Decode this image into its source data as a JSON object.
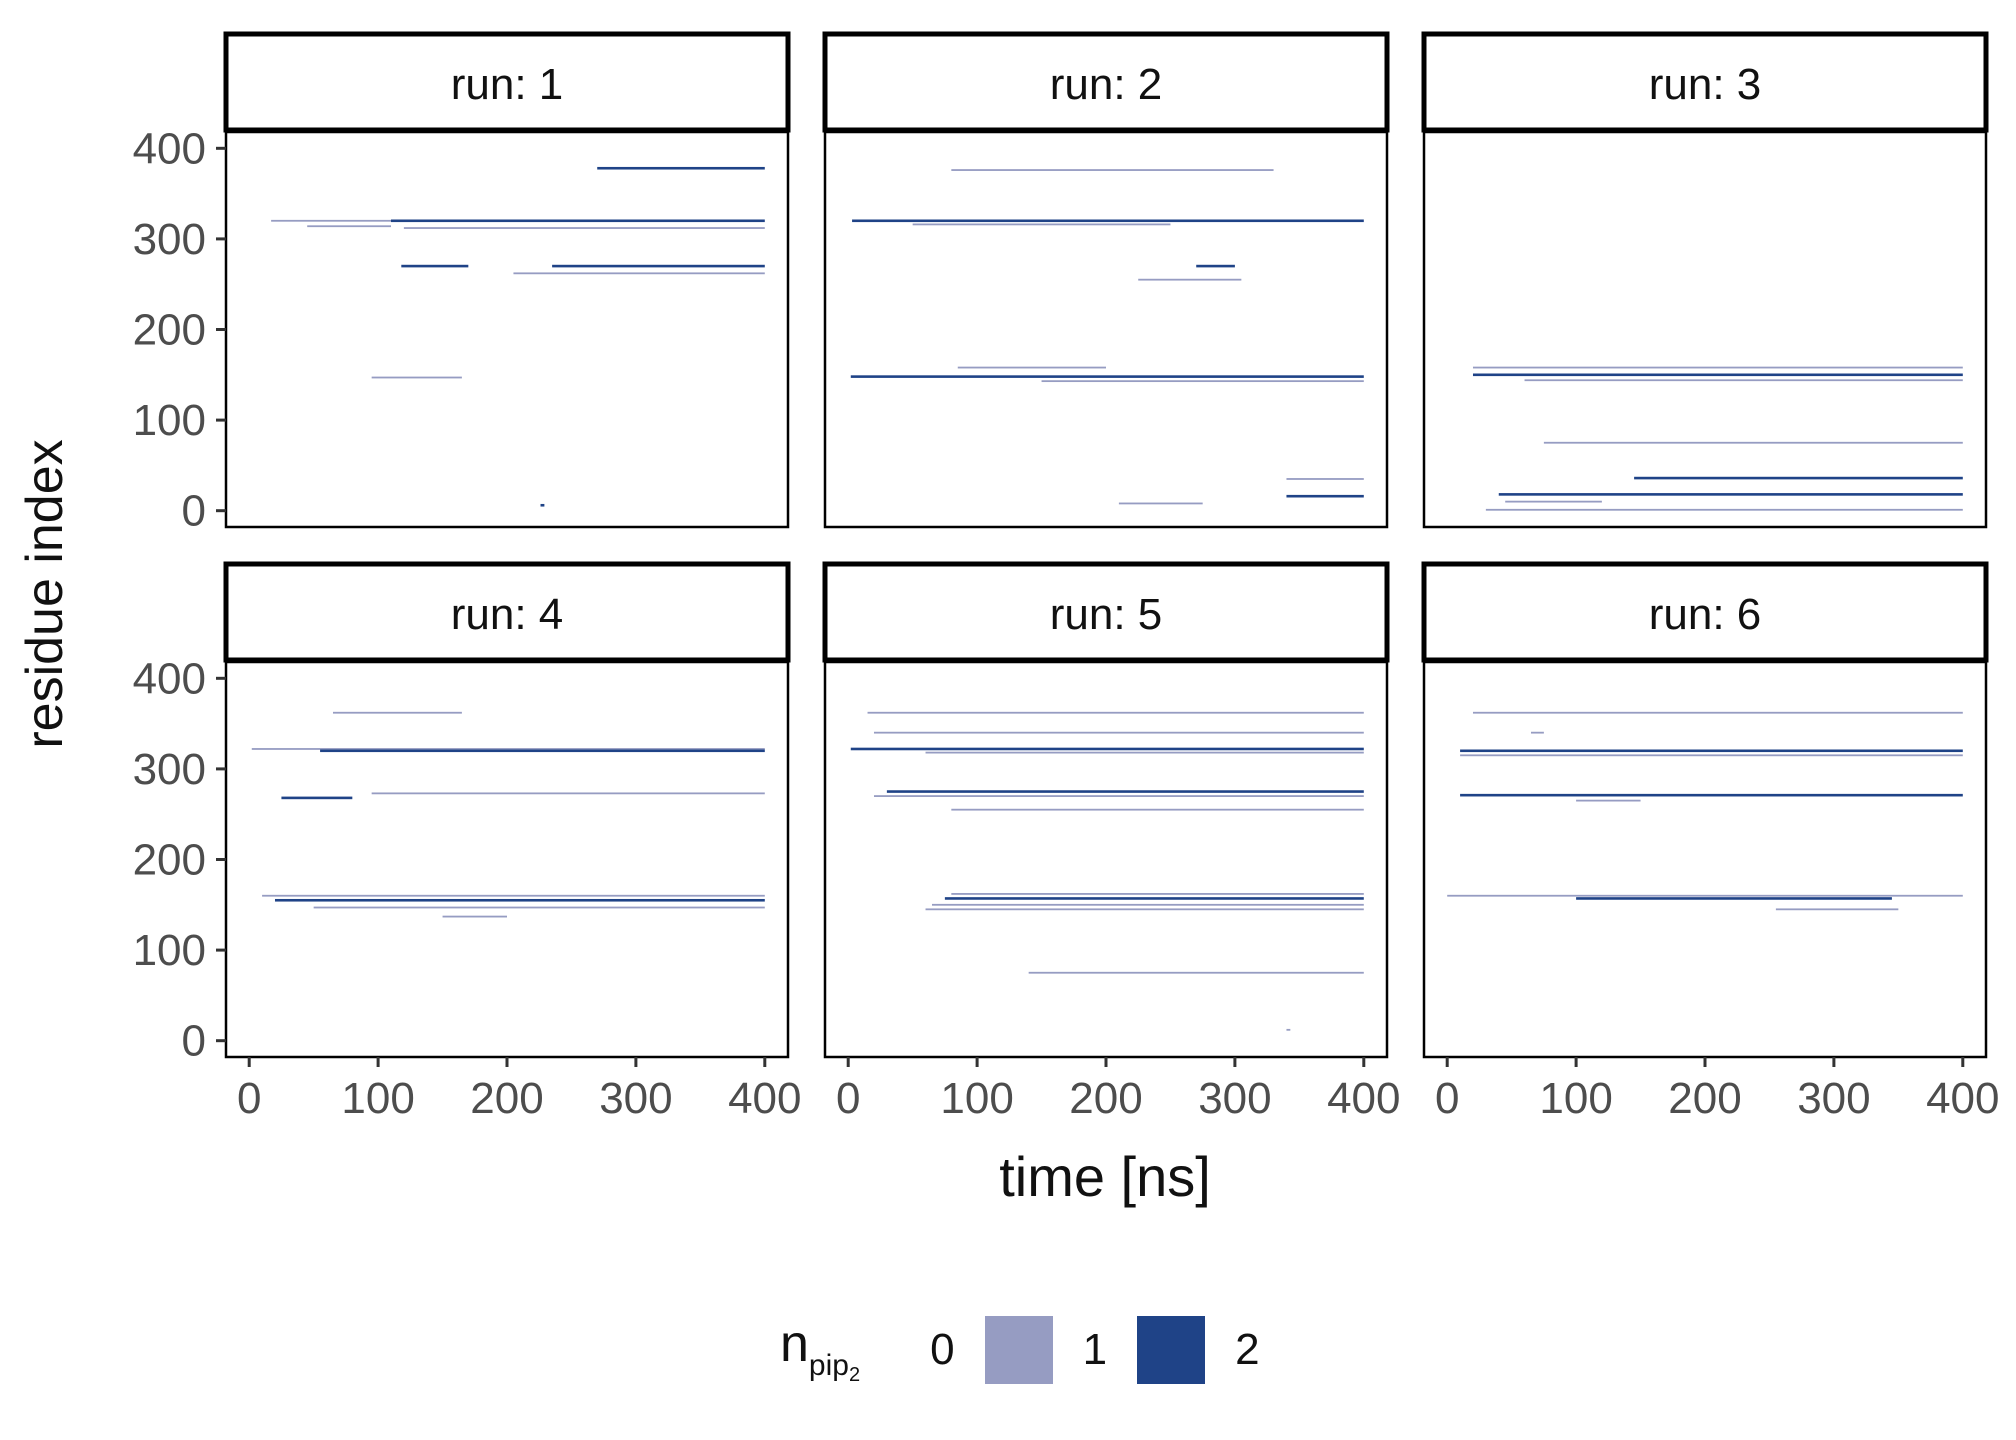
{
  "chart_data": {
    "type": "heatmap",
    "layout": "facet grid 2 rows x 3 columns",
    "xlabel": "time [ns]",
    "ylabel": "residue index",
    "xlim": [
      -18,
      418
    ],
    "ylim": [
      -18,
      418
    ],
    "x_ticks": [
      0,
      100,
      200,
      300,
      400
    ],
    "y_ticks": [
      0,
      100,
      200,
      300,
      400
    ],
    "grid": false,
    "legend": {
      "title_main": "n",
      "title_sub": "pip",
      "title_subsub": "2",
      "placement": "bottom",
      "categories": [
        {
          "label": "0",
          "color": null
        },
        {
          "label": "1",
          "color": "#969cc2"
        },
        {
          "label": "2",
          "color": "#1f4387"
        }
      ]
    },
    "colors": {
      "n1": "#969cc2",
      "n2": "#1f4387"
    },
    "panels": [
      {
        "strip": "run: 1",
        "contacts": [
          {
            "residue": 320,
            "x": [
              17,
              110
            ],
            "n": 1
          },
          {
            "residue": 320,
            "x": [
              110,
              400
            ],
            "n": 2
          },
          {
            "residue": 314,
            "x": [
              45,
              110
            ],
            "n": 1
          },
          {
            "residue": 312,
            "x": [
              120,
              400
            ],
            "n": 1
          },
          {
            "residue": 378,
            "x": [
              270,
              400
            ],
            "n": 2
          },
          {
            "residue": 270,
            "x": [
              118,
              170
            ],
            "n": 2
          },
          {
            "residue": 270,
            "x": [
              235,
              400
            ],
            "n": 2
          },
          {
            "residue": 262,
            "x": [
              205,
              400
            ],
            "n": 1
          },
          {
            "residue": 147,
            "x": [
              95,
              165
            ],
            "n": 1
          },
          {
            "residue": 6,
            "x": [
              226,
              229
            ],
            "n": 2
          }
        ]
      },
      {
        "strip": "run: 2",
        "contacts": [
          {
            "residue": 320,
            "x": [
              3,
              400
            ],
            "n": 2
          },
          {
            "residue": 316,
            "x": [
              50,
              250
            ],
            "n": 1
          },
          {
            "residue": 376,
            "x": [
              80,
              330
            ],
            "n": 1
          },
          {
            "residue": 270,
            "x": [
              270,
              300
            ],
            "n": 2
          },
          {
            "residue": 255,
            "x": [
              225,
              305
            ],
            "n": 1
          },
          {
            "residue": 158,
            "x": [
              85,
              200
            ],
            "n": 1
          },
          {
            "residue": 148,
            "x": [
              2,
              400
            ],
            "n": 2
          },
          {
            "residue": 143,
            "x": [
              150,
              400
            ],
            "n": 1
          },
          {
            "residue": 35,
            "x": [
              340,
              400
            ],
            "n": 1
          },
          {
            "residue": 16,
            "x": [
              340,
              400
            ],
            "n": 2
          },
          {
            "residue": 8,
            "x": [
              210,
              275
            ],
            "n": 1
          }
        ]
      },
      {
        "strip": "run: 3",
        "contacts": [
          {
            "residue": 158,
            "x": [
              20,
              400
            ],
            "n": 1
          },
          {
            "residue": 150,
            "x": [
              20,
              400
            ],
            "n": 2
          },
          {
            "residue": 144,
            "x": [
              60,
              400
            ],
            "n": 1
          },
          {
            "residue": 75,
            "x": [
              75,
              400
            ],
            "n": 1
          },
          {
            "residue": 36,
            "x": [
              145,
              400
            ],
            "n": 2
          },
          {
            "residue": 18,
            "x": [
              40,
              400
            ],
            "n": 2
          },
          {
            "residue": 10,
            "x": [
              45,
              120
            ],
            "n": 1
          },
          {
            "residue": 1,
            "x": [
              30,
              400
            ],
            "n": 1
          }
        ]
      },
      {
        "strip": "run: 4",
        "contacts": [
          {
            "residue": 362,
            "x": [
              65,
              165
            ],
            "n": 1
          },
          {
            "residue": 322,
            "x": [
              2,
              400
            ],
            "n": 1
          },
          {
            "residue": 320,
            "x": [
              55,
              400
            ],
            "n": 2
          },
          {
            "residue": 273,
            "x": [
              95,
              400
            ],
            "n": 1
          },
          {
            "residue": 268,
            "x": [
              25,
              80
            ],
            "n": 2
          },
          {
            "residue": 160,
            "x": [
              10,
              400
            ],
            "n": 1
          },
          {
            "residue": 155,
            "x": [
              20,
              400
            ],
            "n": 2
          },
          {
            "residue": 147,
            "x": [
              50,
              400
            ],
            "n": 1
          },
          {
            "residue": 137,
            "x": [
              150,
              200
            ],
            "n": 1
          }
        ]
      },
      {
        "strip": "run: 5",
        "contacts": [
          {
            "residue": 362,
            "x": [
              15,
              400
            ],
            "n": 1
          },
          {
            "residue": 340,
            "x": [
              20,
              400
            ],
            "n": 1
          },
          {
            "residue": 322,
            "x": [
              2,
              400
            ],
            "n": 2
          },
          {
            "residue": 318,
            "x": [
              60,
              400
            ],
            "n": 1
          },
          {
            "residue": 275,
            "x": [
              30,
              400
            ],
            "n": 2
          },
          {
            "residue": 270,
            "x": [
              20,
              400
            ],
            "n": 1
          },
          {
            "residue": 255,
            "x": [
              80,
              400
            ],
            "n": 1
          },
          {
            "residue": 162,
            "x": [
              80,
              400
            ],
            "n": 1
          },
          {
            "residue": 157,
            "x": [
              75,
              400
            ],
            "n": 2
          },
          {
            "residue": 150,
            "x": [
              65,
              400
            ],
            "n": 1
          },
          {
            "residue": 145,
            "x": [
              60,
              400
            ],
            "n": 1
          },
          {
            "residue": 75,
            "x": [
              140,
              400
            ],
            "n": 1
          },
          {
            "residue": 12,
            "x": [
              340,
              343
            ],
            "n": 1
          }
        ]
      },
      {
        "strip": "run: 6",
        "contacts": [
          {
            "residue": 362,
            "x": [
              20,
              400
            ],
            "n": 1
          },
          {
            "residue": 320,
            "x": [
              10,
              400
            ],
            "n": 2
          },
          {
            "residue": 315,
            "x": [
              10,
              400
            ],
            "n": 1
          },
          {
            "residue": 271,
            "x": [
              10,
              400
            ],
            "n": 2
          },
          {
            "residue": 265,
            "x": [
              100,
              150
            ],
            "n": 1
          },
          {
            "residue": 160,
            "x": [
              0,
              400
            ],
            "n": 1
          },
          {
            "residue": 157,
            "x": [
              100,
              345
            ],
            "n": 2
          },
          {
            "residue": 145,
            "x": [
              255,
              350
            ],
            "n": 1
          },
          {
            "residue": 340,
            "x": [
              65,
              75
            ],
            "n": 1
          }
        ]
      }
    ]
  }
}
